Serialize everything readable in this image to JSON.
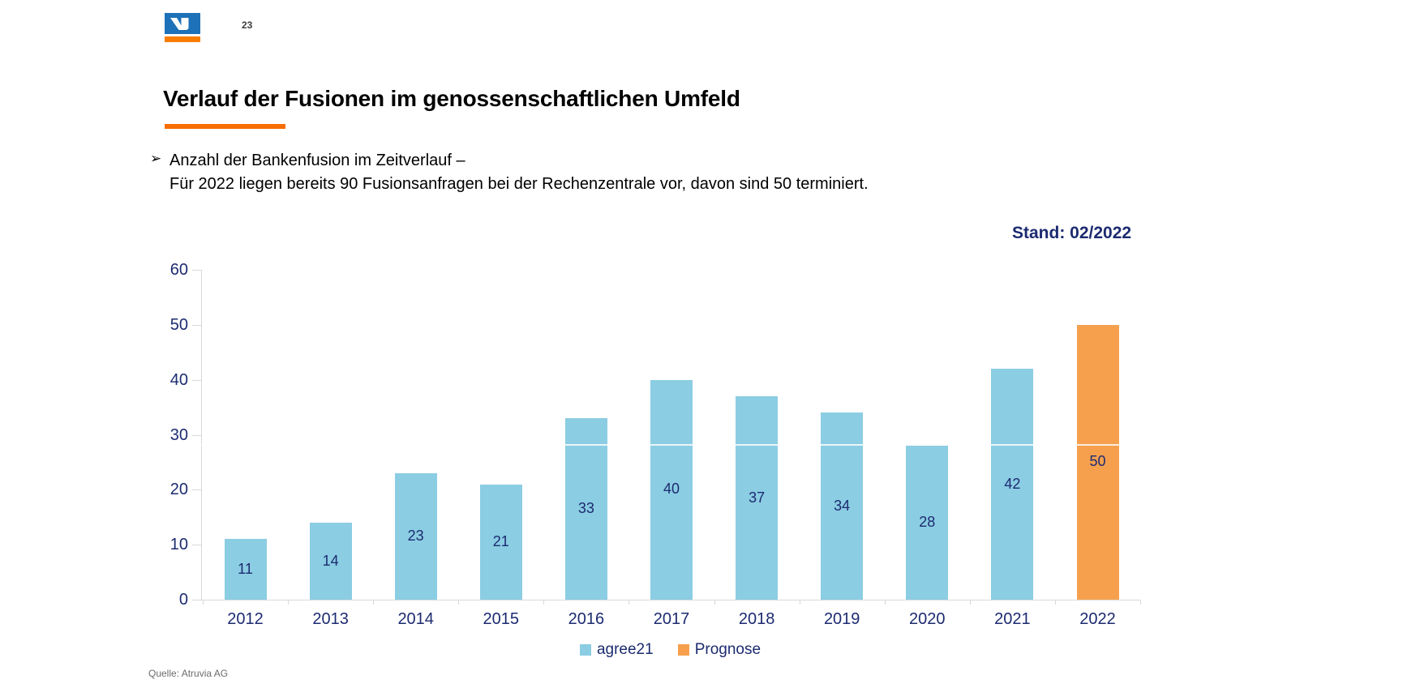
{
  "page": {
    "number": "23"
  },
  "logo": {
    "name": "volksbanken-vr-logo",
    "blue": "#1d71b8",
    "orange": "#f87d00"
  },
  "header": {
    "title": "Verlauf der Fusionen im genossenschaftlichen Umfeld",
    "underline_color": "#f86e00"
  },
  "bullet": {
    "marker": "➢",
    "line1": "Anzahl der Bankenfusion im Zeitverlauf –",
    "line2": "Für 2022 liegen bereits 90 Fusionsanfragen bei der Rechenzentrale vor, davon sind 50 terminiert."
  },
  "stand_label": "Stand: 02/2022",
  "footer": {
    "source": "Quelle: Atruvia AG"
  },
  "chart_data": {
    "type": "bar",
    "categories": [
      "2012",
      "2013",
      "2014",
      "2015",
      "2016",
      "2017",
      "2018",
      "2019",
      "2020",
      "2021",
      "2022"
    ],
    "series": [
      {
        "name": "agree21",
        "color": "#8bcde3",
        "values": [
          11,
          14,
          23,
          21,
          33,
          40,
          37,
          34,
          28,
          42,
          null
        ]
      },
      {
        "name": "Prognose",
        "color": "#f6a04e",
        "values": [
          null,
          null,
          null,
          null,
          null,
          null,
          null,
          null,
          null,
          null,
          50
        ]
      }
    ],
    "title": "",
    "xlabel": "",
    "ylabel": "",
    "ylim": [
      0,
      60
    ],
    "ytick_step": 10,
    "grid": false,
    "legend_position": "bottom",
    "value_labels": true,
    "text_color": "#1c2b70",
    "axis_color": "#d9d9d9"
  }
}
